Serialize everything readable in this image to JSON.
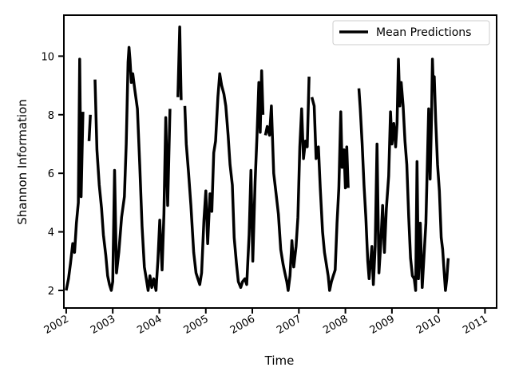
{
  "chart_data": {
    "type": "line",
    "title": "",
    "xlabel": "Time",
    "ylabel": "Shannon Information",
    "xlim": [
      2001.95,
      2011.25
    ],
    "ylim": [
      1.4,
      11.4
    ],
    "x_ticks": [
      2002,
      2003,
      2004,
      2005,
      2006,
      2007,
      2008,
      2009,
      2010,
      2011
    ],
    "x_tick_labels": [
      "2002",
      "2003",
      "2004",
      "2005",
      "2006",
      "2007",
      "2008",
      "2009",
      "2010",
      "2011"
    ],
    "y_ticks": [
      2,
      4,
      6,
      8,
      10
    ],
    "y_tick_labels": [
      "2",
      "4",
      "6",
      "8",
      "10"
    ],
    "grid": false,
    "legend": {
      "position": "top-right",
      "entries": [
        "Mean Predictions"
      ]
    },
    "colors": {
      "series": "#000000",
      "axes": "#000000",
      "background": "#ffffff"
    },
    "series": [
      {
        "name": "Mean Predictions",
        "segments": [
          [
            [
              2002.0,
              2.0
            ],
            [
              2002.05,
              2.4
            ],
            [
              2002.09,
              2.9
            ],
            [
              2002.14,
              3.6
            ],
            [
              2002.18,
              3.3
            ],
            [
              2002.22,
              4.3
            ],
            [
              2002.26,
              5.0
            ],
            [
              2002.29,
              9.9
            ],
            [
              2002.32,
              5.2
            ],
            [
              2002.36,
              8.1
            ]
          ],
          [
            [
              2002.49,
              7.1
            ],
            [
              2002.52,
              8.0
            ]
          ],
          [
            [
              2002.62,
              9.2
            ],
            [
              2002.66,
              6.8
            ],
            [
              2002.71,
              5.6
            ],
            [
              2002.76,
              4.8
            ],
            [
              2002.8,
              3.9
            ],
            [
              2002.85,
              3.2
            ],
            [
              2002.89,
              2.5
            ],
            [
              2002.93,
              2.2
            ],
            [
              2002.97,
              2.0
            ],
            [
              2003.0,
              2.3
            ],
            [
              2003.04,
              6.1
            ],
            [
              2003.08,
              2.6
            ],
            [
              2003.13,
              3.3
            ],
            [
              2003.19,
              4.5
            ],
            [
              2003.25,
              5.2
            ],
            [
              2003.29,
              7.0
            ],
            [
              2003.33,
              9.8
            ],
            [
              2003.35,
              10.3
            ],
            [
              2003.37,
              9.9
            ],
            [
              2003.4,
              9.1
            ],
            [
              2003.43,
              9.4
            ],
            [
              2003.47,
              8.9
            ],
            [
              2003.53,
              8.2
            ],
            [
              2003.58,
              6.3
            ],
            [
              2003.63,
              4.2
            ],
            [
              2003.68,
              2.8
            ],
            [
              2003.72,
              2.4
            ],
            [
              2003.76,
              2.0
            ],
            [
              2003.8,
              2.5
            ],
            [
              2003.84,
              2.1
            ],
            [
              2003.88,
              2.4
            ],
            [
              2003.93,
              2.0
            ],
            [
              2003.97,
              3.0
            ],
            [
              2004.01,
              4.4
            ],
            [
              2004.06,
              2.7
            ],
            [
              2004.1,
              4.6
            ],
            [
              2004.14,
              7.9
            ],
            [
              2004.18,
              4.9
            ],
            [
              2004.23,
              8.2
            ]
          ],
          [
            [
              2004.4,
              8.6
            ],
            [
              2004.44,
              11.0
            ],
            [
              2004.47,
              8.5
            ]
          ],
          [
            [
              2004.55,
              8.3
            ],
            [
              2004.58,
              7.0
            ],
            [
              2004.63,
              6.0
            ],
            [
              2004.68,
              4.9
            ],
            [
              2004.74,
              3.3
            ],
            [
              2004.79,
              2.6
            ],
            [
              2004.83,
              2.4
            ],
            [
              2004.87,
              2.2
            ],
            [
              2004.91,
              2.6
            ],
            [
              2004.96,
              4.4
            ],
            [
              2005.0,
              5.4
            ],
            [
              2005.04,
              3.6
            ],
            [
              2005.09,
              5.3
            ],
            [
              2005.13,
              4.7
            ],
            [
              2005.17,
              6.7
            ],
            [
              2005.21,
              7.1
            ],
            [
              2005.26,
              8.6
            ],
            [
              2005.3,
              9.4
            ],
            [
              2005.34,
              9.0
            ],
            [
              2005.39,
              8.7
            ],
            [
              2005.43,
              8.3
            ],
            [
              2005.48,
              7.3
            ],
            [
              2005.52,
              6.3
            ],
            [
              2005.57,
              5.6
            ],
            [
              2005.61,
              3.8
            ],
            [
              2005.66,
              2.9
            ],
            [
              2005.7,
              2.3
            ],
            [
              2005.75,
              2.1
            ],
            [
              2005.79,
              2.3
            ],
            [
              2005.84,
              2.4
            ],
            [
              2005.88,
              2.2
            ],
            [
              2005.93,
              3.9
            ],
            [
              2005.97,
              6.1
            ],
            [
              2006.01,
              3.0
            ],
            [
              2006.06,
              5.7
            ],
            [
              2006.1,
              7.3
            ],
            [
              2006.14,
              9.1
            ],
            [
              2006.17,
              7.4
            ],
            [
              2006.2,
              9.5
            ],
            [
              2006.23,
              8.0
            ]
          ],
          [
            [
              2006.28,
              7.3
            ],
            [
              2006.32,
              7.6
            ],
            [
              2006.37,
              7.3
            ],
            [
              2006.41,
              8.3
            ],
            [
              2006.46,
              6.0
            ],
            [
              2006.51,
              5.3
            ],
            [
              2006.56,
              4.6
            ],
            [
              2006.61,
              3.4
            ],
            [
              2006.66,
              2.9
            ],
            [
              2006.7,
              2.6
            ],
            [
              2006.74,
              2.3
            ],
            [
              2006.77,
              2.0
            ],
            [
              2006.81,
              2.5
            ],
            [
              2006.85,
              3.7
            ],
            [
              2006.89,
              2.8
            ],
            [
              2006.94,
              3.5
            ],
            [
              2006.98,
              4.5
            ],
            [
              2007.02,
              6.9
            ],
            [
              2007.06,
              8.2
            ],
            [
              2007.1,
              6.5
            ],
            [
              2007.14,
              7.1
            ],
            [
              2007.18,
              6.9
            ],
            [
              2007.22,
              9.3
            ]
          ],
          [
            [
              2007.28,
              8.6
            ],
            [
              2007.33,
              8.3
            ],
            [
              2007.37,
              6.5
            ],
            [
              2007.42,
              6.9
            ],
            [
              2007.46,
              5.5
            ],
            [
              2007.51,
              4.0
            ],
            [
              2007.55,
              3.3
            ],
            [
              2007.59,
              2.9
            ],
            [
              2007.63,
              2.5
            ],
            [
              2007.66,
              2.0
            ],
            [
              2007.7,
              2.3
            ],
            [
              2007.74,
              2.5
            ],
            [
              2007.78,
              2.7
            ],
            [
              2007.82,
              4.3
            ],
            [
              2007.86,
              5.5
            ],
            [
              2007.9,
              8.1
            ],
            [
              2007.93,
              6.2
            ],
            [
              2007.97,
              6.8
            ],
            [
              2008.0,
              5.5
            ],
            [
              2008.03,
              6.9
            ],
            [
              2008.06,
              5.5
            ]
          ],
          [
            [
              2008.29,
              8.9
            ],
            [
              2008.32,
              8.2
            ],
            [
              2008.36,
              7.0
            ],
            [
              2008.4,
              5.6
            ],
            [
              2008.44,
              4.5
            ],
            [
              2008.48,
              3.0
            ],
            [
              2008.51,
              2.4
            ],
            [
              2008.53,
              2.8
            ],
            [
              2008.57,
              3.5
            ],
            [
              2008.6,
              2.2
            ],
            [
              2008.64,
              3.5
            ],
            [
              2008.68,
              7.0
            ],
            [
              2008.72,
              2.6
            ],
            [
              2008.76,
              3.6
            ],
            [
              2008.8,
              4.9
            ],
            [
              2008.84,
              3.3
            ],
            [
              2008.88,
              4.8
            ],
            [
              2008.93,
              5.9
            ],
            [
              2008.97,
              8.1
            ],
            [
              2009.0,
              7.0
            ],
            [
              2009.04,
              7.7
            ],
            [
              2009.08,
              6.9
            ],
            [
              2009.11,
              7.7
            ],
            [
              2009.14,
              9.9
            ],
            [
              2009.17,
              8.3
            ],
            [
              2009.2,
              9.1
            ],
            [
              2009.24,
              8.3
            ],
            [
              2009.28,
              7.1
            ],
            [
              2009.32,
              6.3
            ],
            [
              2009.36,
              4.5
            ],
            [
              2009.4,
              3.1
            ],
            [
              2009.44,
              2.5
            ],
            [
              2009.48,
              2.4
            ],
            [
              2009.51,
              2.0
            ],
            [
              2009.54,
              6.4
            ],
            [
              2009.57,
              2.4
            ],
            [
              2009.61,
              4.3
            ],
            [
              2009.65,
              2.1
            ],
            [
              2009.69,
              3.2
            ],
            [
              2009.73,
              4.3
            ],
            [
              2009.76,
              6.3
            ],
            [
              2009.79,
              8.2
            ],
            [
              2009.82,
              5.8
            ],
            [
              2009.85,
              7.8
            ],
            [
              2009.87,
              9.9
            ],
            [
              2009.89,
              9.0
            ],
            [
              2009.91,
              9.3
            ],
            [
              2009.94,
              7.8
            ],
            [
              2009.98,
              6.3
            ],
            [
              2010.02,
              5.4
            ],
            [
              2010.06,
              3.8
            ],
            [
              2010.09,
              3.4
            ],
            [
              2010.12,
              2.7
            ],
            [
              2010.15,
              2.0
            ],
            [
              2010.18,
              2.4
            ],
            [
              2010.21,
              3.1
            ]
          ],
          [
            [
              2001.95,
              2.0
            ]
          ]
        ]
      }
    ]
  }
}
